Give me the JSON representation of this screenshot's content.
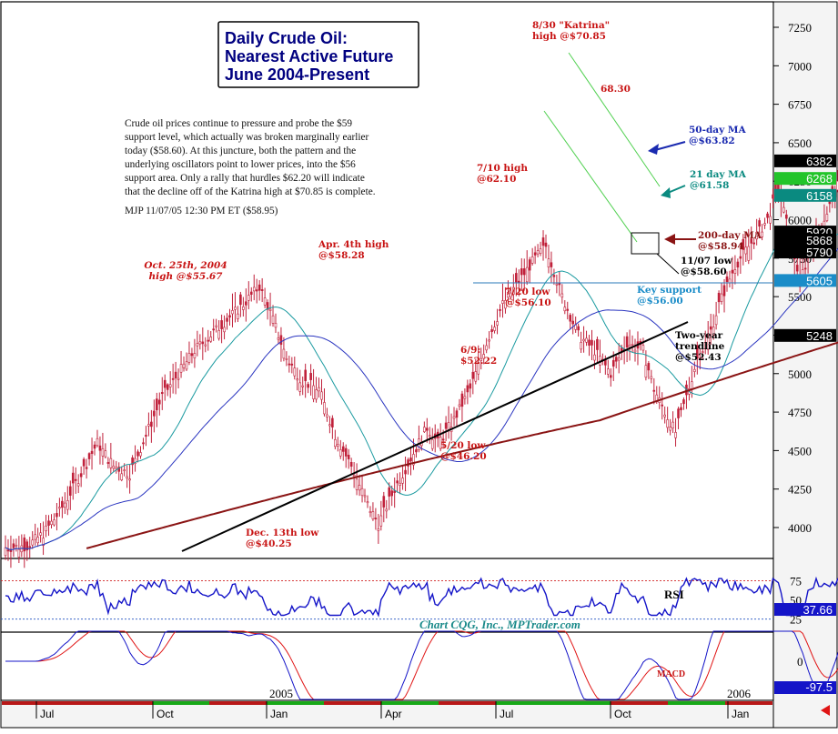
{
  "chart_data": {
    "type": "candlestick",
    "title_lines": [
      "Daily Crude Oil:",
      "Nearest Active Future",
      "June 2004-Present"
    ],
    "commentary_lines": [
      "Crude oil prices continue to pressure and probe the $59",
      "support level, which actually was broken marginally earlier",
      "today ($58.60). At this juncture, both the pattern and the",
      "underlying oscillators point to lower prices, into the $56",
      "support area. Only a rally that hurdles $62.20 will indicate",
      "that the decline off of the Katrina high at $70.85 is complete.",
      "MJP 11/07/05  12:30 PM ET  ($58.95)"
    ],
    "price_axis": {
      "ticks": [
        "7250",
        "7000",
        "6750",
        "6500",
        "6250",
        "6000",
        "5750",
        "5500",
        "5250",
        "5000",
        "4750",
        "4500",
        "4250",
        "4000"
      ],
      "tick_values": [
        7250,
        7000,
        6750,
        6500,
        6250,
        6000,
        5750,
        5500,
        5250,
        5000,
        4750,
        4500,
        4250,
        4000
      ],
      "ylim": [
        3800,
        7400
      ]
    },
    "price_tags": [
      {
        "text": "6382",
        "value": 6382,
        "bg": "#000000",
        "fg": "#ffffff"
      },
      {
        "text": "6268",
        "value": 6268,
        "bg": "#22c42a",
        "fg": "#ffffff"
      },
      {
        "text": "6158",
        "value": 6158,
        "bg": "#0a8a80",
        "fg": "#ffffff"
      },
      {
        "text": "5920",
        "value": 5920,
        "bg": "#000000",
        "fg": "#ffffff"
      },
      {
        "text": "5868",
        "value": 5868,
        "bg": "#000000",
        "fg": "#ffffff"
      },
      {
        "text": "5790",
        "value": 5790,
        "bg": "#000000",
        "fg": "#ffffff"
      },
      {
        "text": "5605",
        "value": 5605,
        "bg": "#1a8cc8",
        "fg": "#ffffff"
      },
      {
        "text": "5248",
        "value": 5248,
        "bg": "#000000",
        "fg": "#ffffff"
      }
    ],
    "x_axis": {
      "labels": [
        "Jul",
        "Oct",
        "Jan",
        "Apr",
        "Jul",
        "Oct",
        "Jan"
      ],
      "year_labels": [
        "2005",
        "2006"
      ]
    },
    "annotations": {
      "oct25": [
        "Oct. 25th, 2004",
        "high @$55.67"
      ],
      "dec13": [
        "Dec. 13th low",
        "@$40.25"
      ],
      "apr4": [
        "Apr. 4th high",
        "@$58.28"
      ],
      "may20": [
        "5/20 low",
        "@$46.20"
      ],
      "jun9": [
        "6/9:",
        "$52.22"
      ],
      "jul10": [
        "7/10 high",
        "@62.10"
      ],
      "jul20": [
        "7/20 low",
        "@$56.10"
      ],
      "katrina": [
        "8/30 \"Katrina\"",
        "high @$70.85"
      ],
      "p6830": [
        "68.30"
      ],
      "ma50": [
        "50-day MA",
        "@$63.82"
      ],
      "ma21": [
        "21 day MA",
        "@61.58"
      ],
      "ma200": [
        "200-day MA",
        "@$58.94"
      ],
      "nov07": [
        "11/07 low",
        "@$58.60"
      ],
      "keysup": [
        "Key support",
        "@$56.00"
      ],
      "trend": [
        "Two-year",
        "trendline",
        "@$52.43"
      ]
    },
    "key_points": [
      {
        "label": "Oct. 25th, 2004 high",
        "value": 55.67
      },
      {
        "label": "Dec. 13th low",
        "value": 40.25
      },
      {
        "label": "Apr. 4th high",
        "value": 58.28
      },
      {
        "label": "5/20 low",
        "value": 46.2
      },
      {
        "label": "6/9",
        "value": 52.22
      },
      {
        "label": "7/10 high",
        "value": 62.1
      },
      {
        "label": "7/20 low",
        "value": 56.1
      },
      {
        "label": "8/30 Katrina high",
        "value": 70.85
      },
      {
        "label": "11/07 low",
        "value": 58.6
      }
    ],
    "rsi": {
      "label": "RSI",
      "ticks": [
        "75",
        "50",
        "25"
      ],
      "tick_values": [
        75,
        50,
        25
      ],
      "current": "37.66",
      "current_value": 37.66
    },
    "macd": {
      "label": "MACD",
      "ticks": [
        "0"
      ],
      "current": "-97.5",
      "current_value": -97.5
    },
    "watermark": "Chart CQG, Inc., MPTrader.com",
    "colors": {
      "candles": "#c0203a",
      "ma21": "#1a9aa0",
      "ma50": "#2a35c0",
      "ma200": "#8a1414",
      "trendline": "#000000",
      "support": "#2a78b8",
      "channel": "#50d050",
      "annotation": "#c81414",
      "title_frame": "#000080",
      "rsi_line": "#1414c8",
      "macd_red": "#e01414",
      "macd_blue": "#1414c8"
    }
  }
}
